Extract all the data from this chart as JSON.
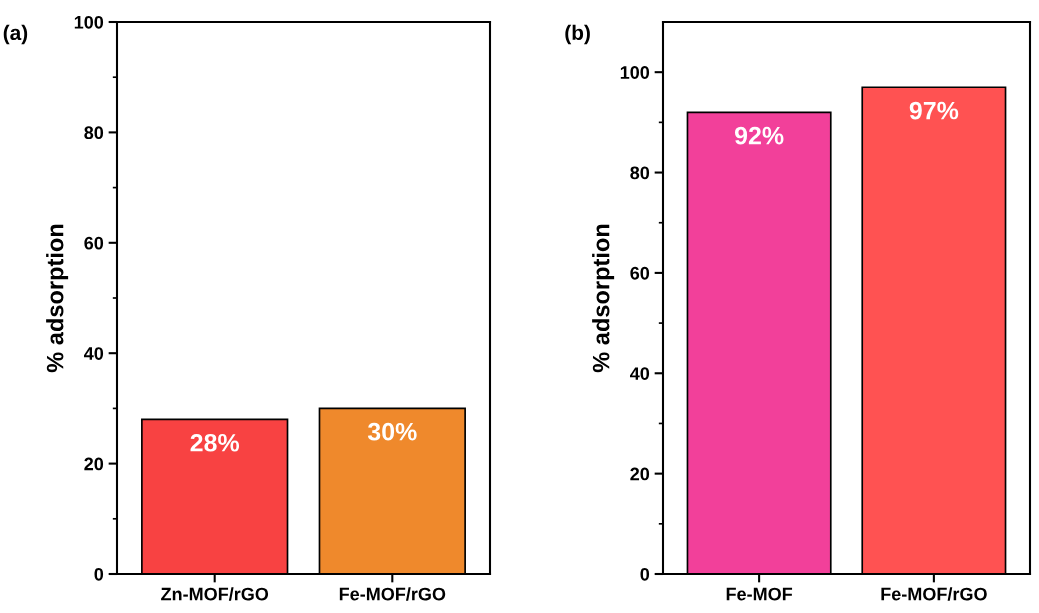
{
  "chart_data": [
    {
      "type": "bar",
      "title": "(a)",
      "ylabel": "% adsorption",
      "categories": [
        "Zn-MOF/rGO",
        "Fe-MOF/rGO"
      ],
      "values": [
        28,
        30
      ],
      "colors": [
        "#f84242",
        "#ef892c"
      ],
      "value_labels": [
        "28%",
        "30%"
      ],
      "ylim": [
        0,
        100
      ],
      "yticks": [
        0,
        20,
        40,
        60,
        80,
        100
      ],
      "grid": false,
      "legend": false
    },
    {
      "type": "bar",
      "title": "(b)",
      "ylabel": "% adsorption",
      "categories": [
        "Fe-MOF",
        "Fe-MOF/rGO"
      ],
      "values": [
        92,
        97
      ],
      "colors": [
        "#f2409a",
        "#ff5252"
      ],
      "value_labels": [
        "92%",
        "97%"
      ],
      "ylim": [
        0,
        110
      ],
      "yticks": [
        0,
        20,
        40,
        60,
        80,
        100
      ],
      "grid": false,
      "legend": false
    }
  ]
}
